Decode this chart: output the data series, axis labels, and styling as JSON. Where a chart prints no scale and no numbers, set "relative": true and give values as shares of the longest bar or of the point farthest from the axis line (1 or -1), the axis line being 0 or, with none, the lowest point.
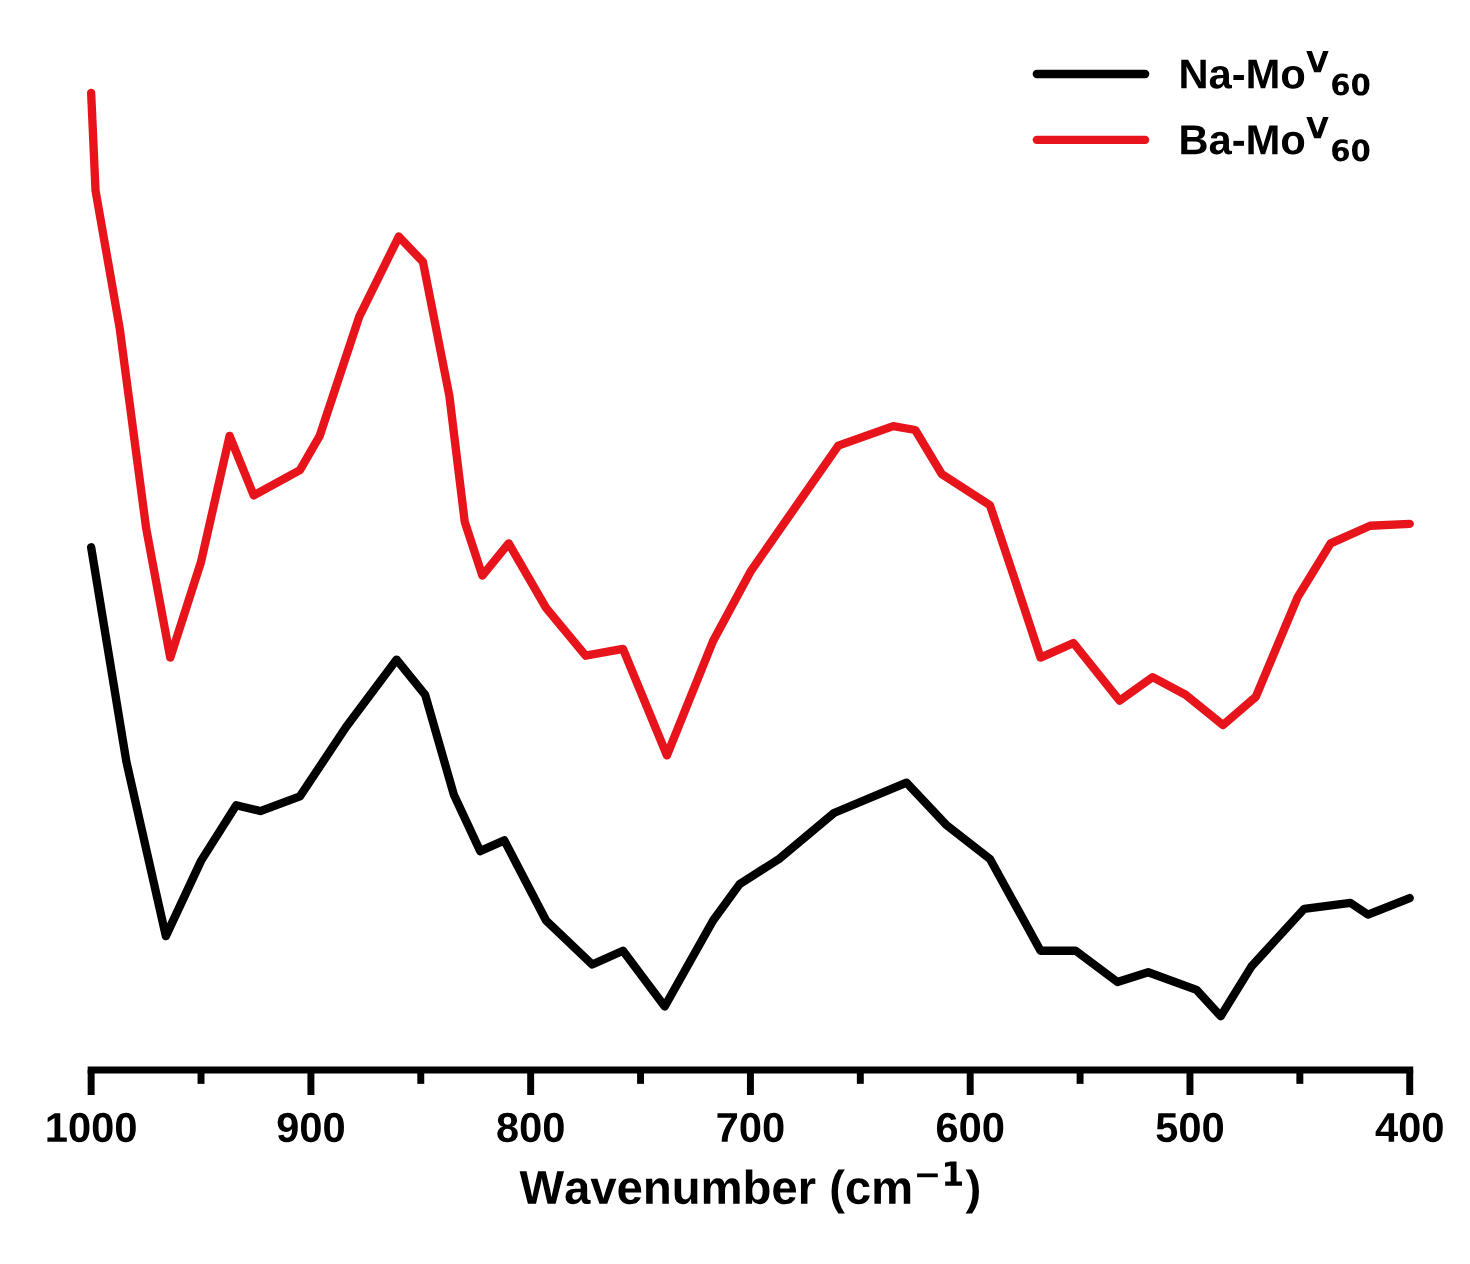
{
  "chart_data": {
    "type": "line",
    "relative": true,
    "xlabel": "Wavenumber (cm$^{−1}$)",
    "xlim": [
      1000,
      400
    ],
    "xticks": [
      1000,
      {
        "value": 950,
        "label": null
      },
      900,
      {
        "value": 850,
        "label": null
      },
      800,
      {
        "value": 750,
        "label": null
      },
      700,
      {
        "value": 650,
        "label": null
      },
      600,
      {
        "value": 550,
        "label": null
      },
      500,
      {
        "value": 450,
        "label": null
      },
      400
    ],
    "legend": "top right",
    "grid": false,
    "marker": "none",
    "line_style": "solid",
    "tick_labels": "x",
    "series": [
      {
        "name": "Na-Mo$^{V}$$_{60}$",
        "color": "#000000",
        "x": [
          1000,
          984,
          966,
          950,
          934,
          923,
          905,
          884,
          861,
          848,
          835,
          823,
          812,
          793,
          772,
          758,
          739,
          717,
          705,
          687,
          662,
          629,
          611,
          591,
          568,
          552,
          533,
          519,
          497,
          486,
          472,
          448,
          427,
          419,
          400
        ],
        "values": [
          0.535,
          0.316,
          0.137,
          0.214,
          0.271,
          0.265,
          0.28,
          0.351,
          0.42,
          0.384,
          0.282,
          0.224,
          0.235,
          0.153,
          0.108,
          0.122,
          0.065,
          0.153,
          0.19,
          0.216,
          0.263,
          0.294,
          0.251,
          0.216,
          0.122,
          0.122,
          0.09,
          0.1,
          0.082,
          0.055,
          0.106,
          0.165,
          0.171,
          0.159,
          0.176
        ]
      },
      {
        "name": "Ba-Mo$^{V}$$_{60}$",
        "color": "#e8141b",
        "x": [
          1000,
          998,
          987,
          975,
          964,
          950,
          937,
          926,
          905,
          896,
          878,
          860,
          849,
          837,
          830,
          822,
          810,
          793,
          775,
          758,
          738,
          717,
          700,
          674,
          660,
          635,
          625,
          613,
          591,
          580,
          568,
          553,
          532,
          517,
          502,
          485,
          470,
          451,
          436,
          418,
          400
        ],
        "values": [
          1.0,
          0.9,
          0.759,
          0.555,
          0.422,
          0.52,
          0.649,
          0.588,
          0.614,
          0.649,
          0.771,
          0.853,
          0.827,
          0.69,
          0.561,
          0.506,
          0.539,
          0.473,
          0.424,
          0.431,
          0.322,
          0.439,
          0.51,
          0.594,
          0.639,
          0.659,
          0.655,
          0.61,
          0.578,
          0.504,
          0.422,
          0.437,
          0.378,
          0.402,
          0.384,
          0.353,
          0.382,
          0.484,
          0.539,
          0.557,
          0.559
        ]
      }
    ]
  }
}
